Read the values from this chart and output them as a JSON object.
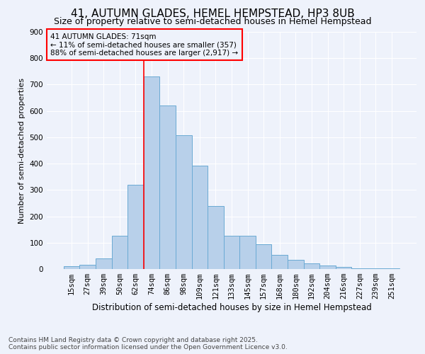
{
  "title": "41, AUTUMN GLADES, HEMEL HEMPSTEAD, HP3 8UB",
  "subtitle": "Size of property relative to semi-detached houses in Hemel Hempstead",
  "xlabel": "Distribution of semi-detached houses by size in Hemel Hempstead",
  "ylabel": "Number of semi-detached properties",
  "categories": [
    "15sqm",
    "27sqm",
    "39sqm",
    "50sqm",
    "62sqm",
    "74sqm",
    "86sqm",
    "98sqm",
    "109sqm",
    "121sqm",
    "133sqm",
    "145sqm",
    "157sqm",
    "168sqm",
    "180sqm",
    "192sqm",
    "204sqm",
    "216sqm",
    "227sqm",
    "239sqm",
    "251sqm"
  ],
  "values": [
    10,
    17,
    40,
    125,
    320,
    730,
    620,
    507,
    393,
    240,
    127,
    127,
    95,
    55,
    35,
    22,
    13,
    7,
    3,
    2,
    4
  ],
  "bar_color": "#b8d0ea",
  "bar_edge_color": "#6aaad4",
  "vline_x": 4.5,
  "vline_color": "red",
  "annotation_text": "41 AUTUMN GLADES: 71sqm\n← 11% of semi-detached houses are smaller (357)\n88% of semi-detached houses are larger (2,917) →",
  "annotation_box_color": "red",
  "ylim": [
    0,
    900
  ],
  "yticks": [
    0,
    100,
    200,
    300,
    400,
    500,
    600,
    700,
    800,
    900
  ],
  "footer": "Contains HM Land Registry data © Crown copyright and database right 2025.\nContains public sector information licensed under the Open Government Licence v3.0.",
  "background_color": "#eef2fb",
  "grid_color": "#ffffff",
  "title_fontsize": 11,
  "subtitle_fontsize": 9,
  "xlabel_fontsize": 8.5,
  "ylabel_fontsize": 8,
  "tick_fontsize": 7.5,
  "footer_fontsize": 6.5,
  "annotation_fontsize": 7.5
}
